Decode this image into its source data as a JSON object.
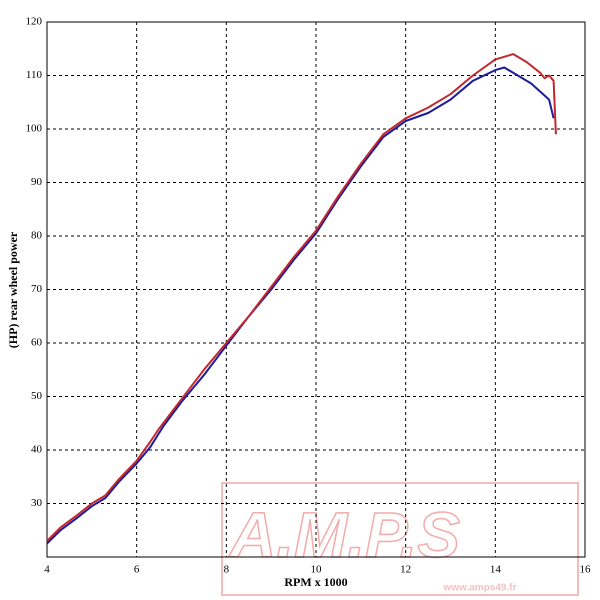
{
  "chart_data": {
    "type": "line",
    "x_label": "RPM x 1000",
    "y_label": "(HP) rear wheel power",
    "xlim": [
      4,
      16
    ],
    "xticks": [
      4,
      6,
      8,
      10,
      12,
      14,
      16
    ],
    "ylim": [
      20,
      120
    ],
    "yticks": [
      30,
      40,
      50,
      60,
      70,
      80,
      90,
      100,
      110,
      120
    ],
    "grid": true,
    "watermark": {
      "logo": "A.M.P.S",
      "number": "49",
      "url": "www.amps49.fr"
    },
    "series": [
      {
        "color": "#1c1c9c",
        "x": [
          4.0,
          4.3,
          4.7,
          5.0,
          5.3,
          5.6,
          6.0,
          6.3,
          6.6,
          7.0,
          7.5,
          8.0,
          8.5,
          9.0,
          9.5,
          10.0,
          10.5,
          11.0,
          11.5,
          12.0,
          12.5,
          13.0,
          13.5,
          14.0,
          14.2,
          14.5,
          14.8,
          15.0,
          15.2,
          15.3
        ],
        "values": [
          22.5,
          25,
          27.5,
          29.5,
          31,
          34,
          37.5,
          40.5,
          44.5,
          49,
          54,
          59.5,
          65,
          70,
          75.5,
          80.5,
          87,
          93,
          98.5,
          101.5,
          103,
          105.5,
          109,
          111,
          111.5,
          110,
          108.5,
          107,
          105.5,
          102
        ]
      },
      {
        "color": "#c2282d",
        "x": [
          4.0,
          4.3,
          4.7,
          5.0,
          5.3,
          5.6,
          6.0,
          6.3,
          6.5,
          7.0,
          7.5,
          8.0,
          8.5,
          9.0,
          9.5,
          10.0,
          10.5,
          11.0,
          11.5,
          12.0,
          12.5,
          13.0,
          13.5,
          14.0,
          14.4,
          14.7,
          15.0,
          15.1,
          15.2,
          15.3,
          15.35
        ],
        "values": [
          23,
          25.5,
          28,
          30,
          31.5,
          34.5,
          38,
          41.5,
          44,
          49.5,
          55,
          60,
          65,
          70.5,
          76,
          81,
          87.5,
          93.5,
          99,
          102,
          104,
          106.5,
          110,
          113,
          114,
          112.5,
          110.5,
          109.5,
          110,
          109,
          99
        ]
      }
    ]
  }
}
